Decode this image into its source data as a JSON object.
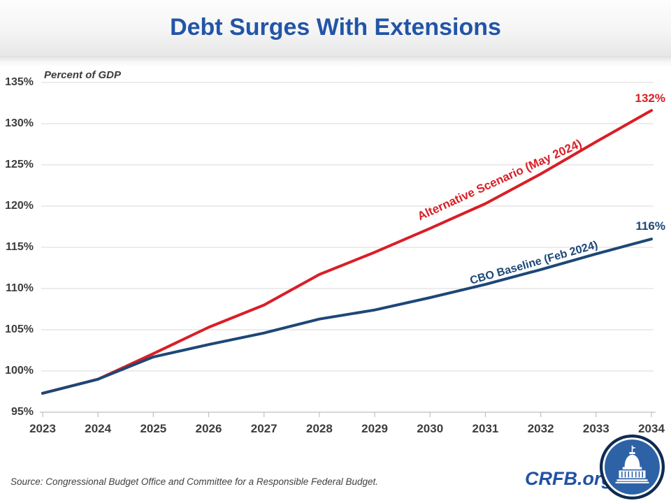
{
  "header": {
    "title": "Debt Surges With Extensions"
  },
  "chart_data": {
    "type": "line",
    "title": "Debt Surges With Extensions",
    "ylabel": "Percent of GDP",
    "xlabel": "",
    "x": [
      2023,
      2024,
      2025,
      2026,
      2027,
      2028,
      2029,
      2030,
      2031,
      2032,
      2033,
      2034
    ],
    "x_tick_labels": [
      "2023",
      "2024",
      "2025",
      "2026",
      "2027",
      "2028",
      "2029",
      "2030",
      "2031",
      "2032",
      "2033",
      "2034"
    ],
    "y_tick_values": [
      95,
      100,
      105,
      110,
      115,
      120,
      125,
      130,
      135
    ],
    "y_tick_labels": [
      "95%",
      "100%",
      "105%",
      "110%",
      "115%",
      "120%",
      "125%",
      "130%",
      "135%"
    ],
    "ylim": [
      95,
      135
    ],
    "grid": true,
    "legend_position": "inline-rotated-along-lines",
    "series": [
      {
        "name": "Alternative Scenario (May 2024)",
        "color": "#D91E26",
        "values": [
          97.3,
          99.0,
          102.1,
          105.3,
          108.0,
          111.7,
          114.4,
          117.3,
          120.3,
          123.9,
          127.8,
          131.6
        ],
        "end_label": "132%"
      },
      {
        "name": "CBO Baseline (Feb 2024)",
        "color": "#1D4777",
        "values": [
          97.3,
          99.0,
          101.7,
          103.2,
          104.6,
          106.3,
          107.4,
          108.9,
          110.5,
          112.3,
          114.2,
          116.0
        ],
        "end_label": "116%"
      }
    ]
  },
  "footer": {
    "source": "Source: Congressional Budget Office and Committee for a Responsible Federal Budget.",
    "site": "CRFB.org"
  },
  "colors": {
    "title_blue": "#2255A7",
    "crfb_blue": "#2152A3",
    "grid": "#D9D9D9",
    "axis": "#BFBFBF",
    "tick_text": "#3d3d3d",
    "logo_ring": "#0F2B52",
    "logo_fill": "#2E62A6"
  }
}
